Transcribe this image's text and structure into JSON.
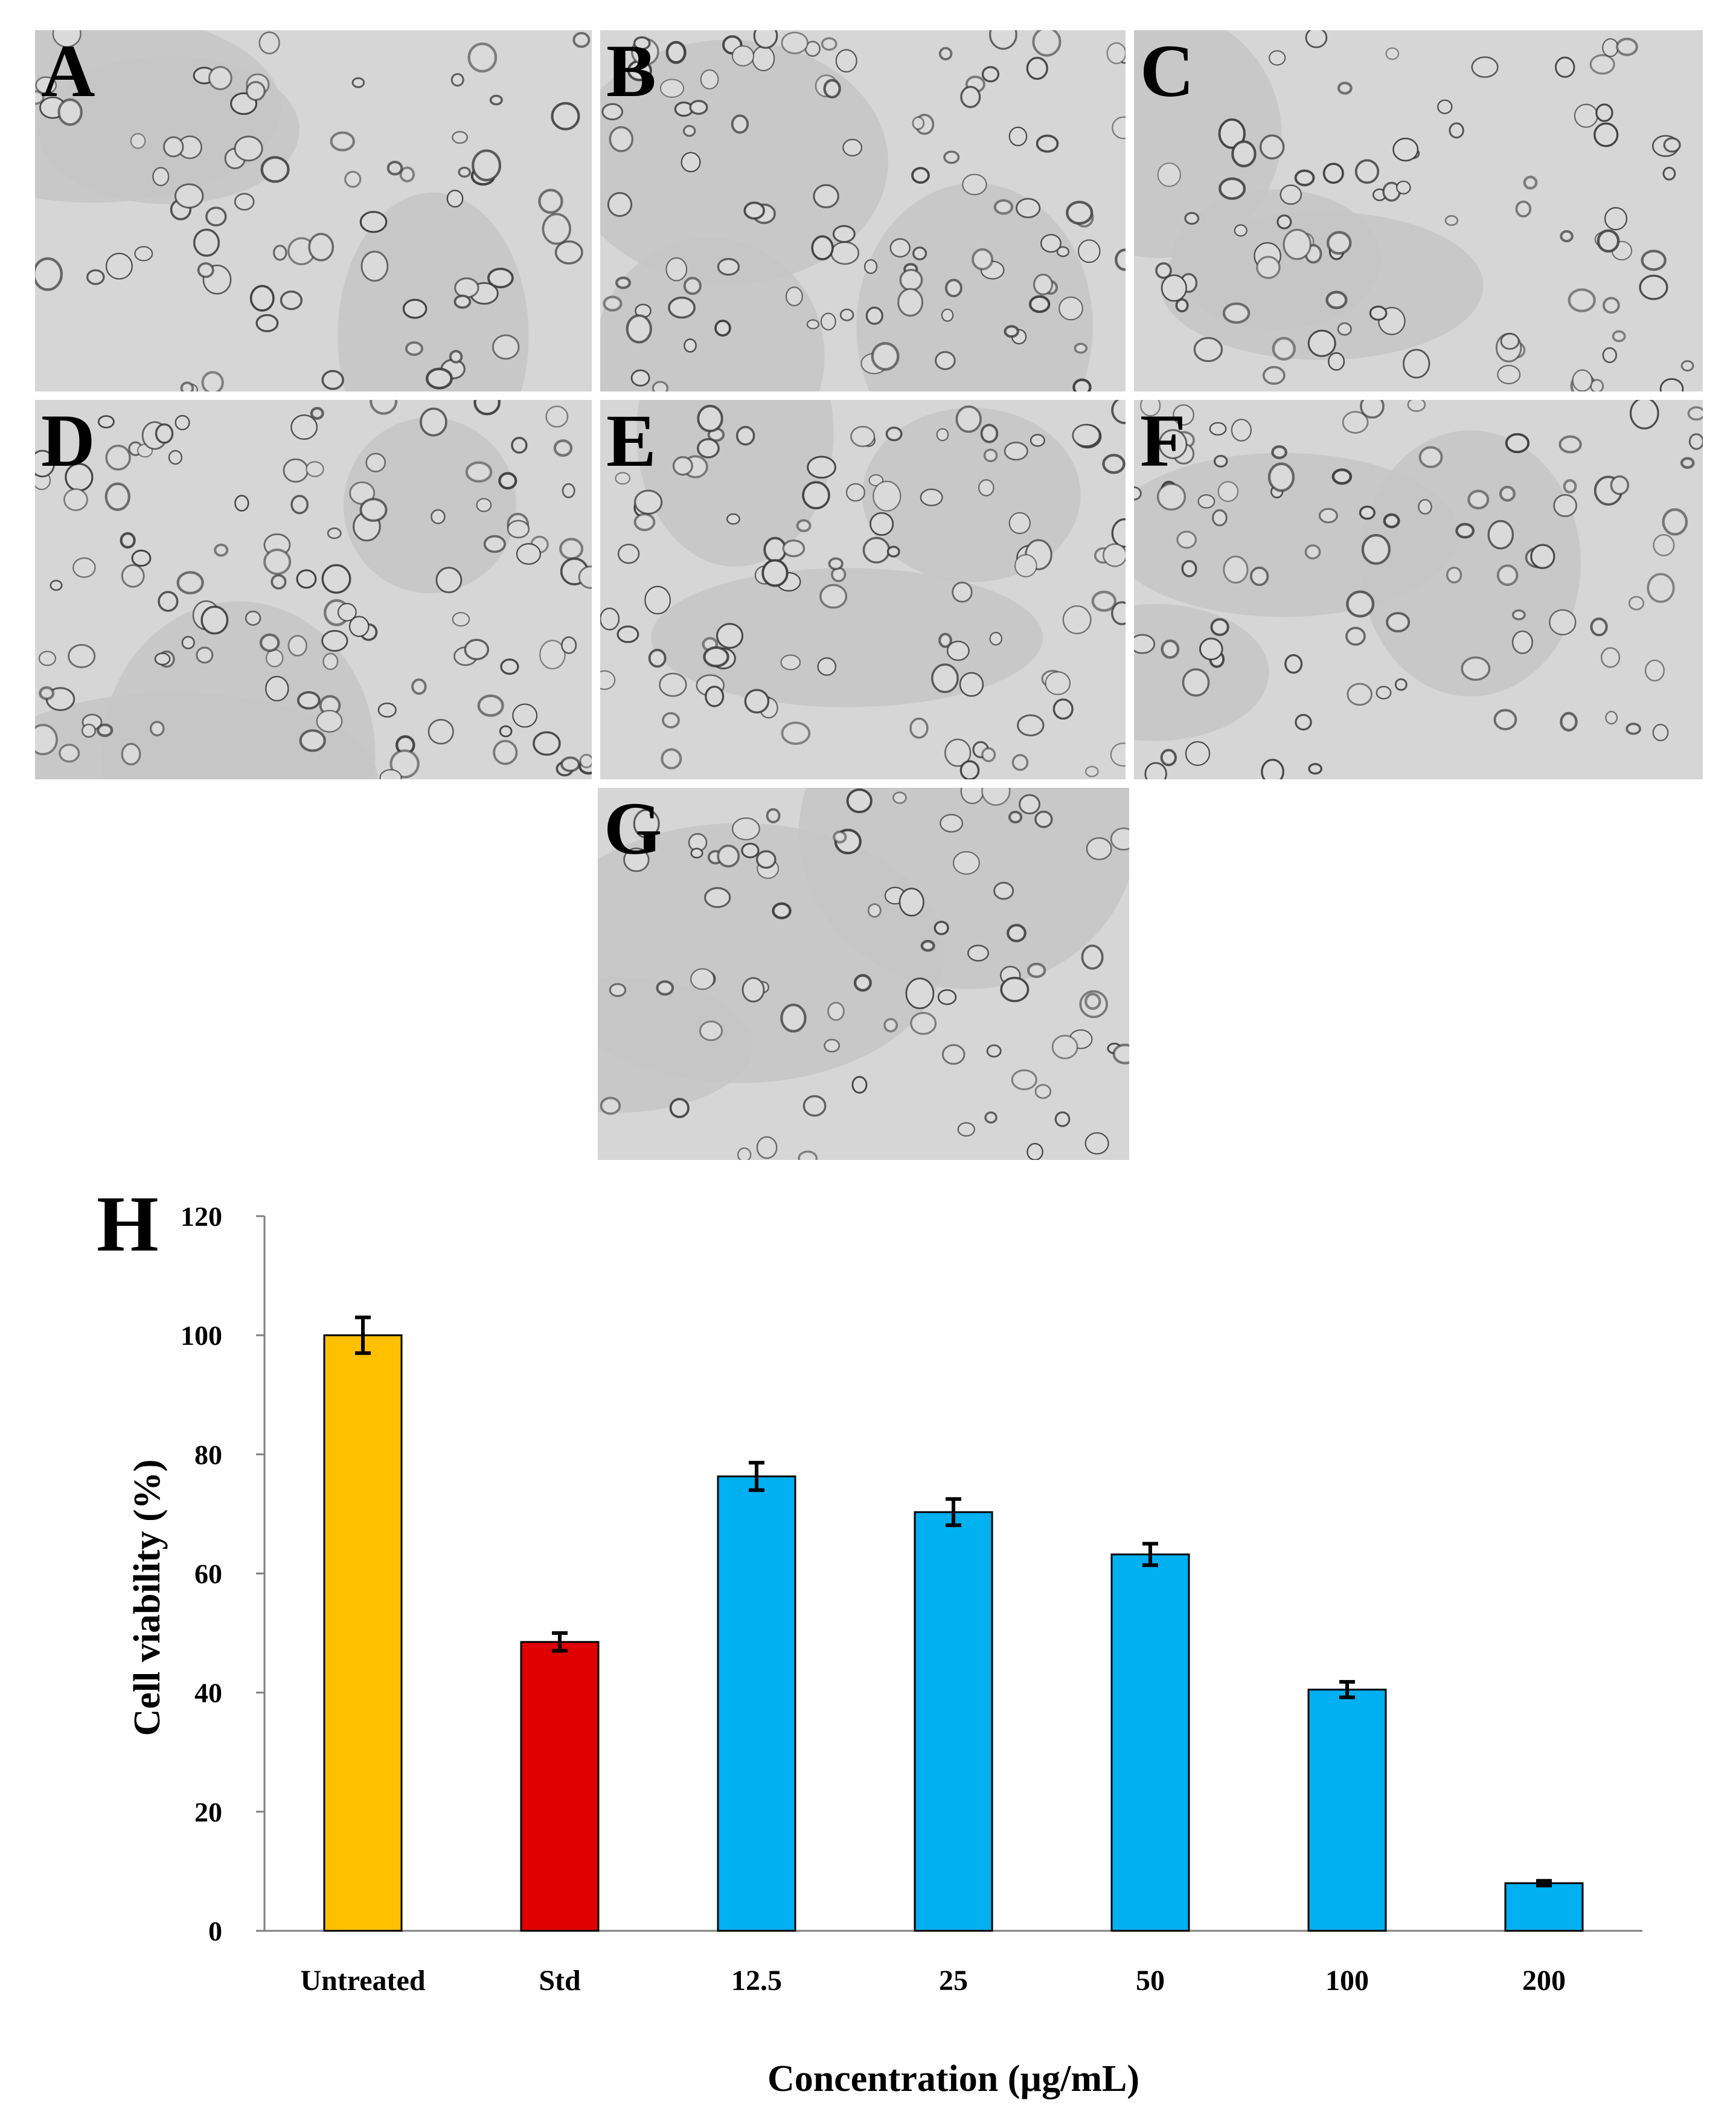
{
  "panels": [
    {
      "label": "A",
      "density": 70,
      "seed": 11
    },
    {
      "label": "B",
      "density": 95,
      "seed": 23
    },
    {
      "label": "C",
      "density": 80,
      "seed": 37
    },
    {
      "label": "D",
      "density": 110,
      "seed": 41
    },
    {
      "label": "E",
      "density": 95,
      "seed": 53
    },
    {
      "label": "F",
      "density": 85,
      "seed": 67
    },
    {
      "label": "G",
      "density": 75,
      "seed": 79
    }
  ],
  "chart_letter": "H",
  "chart_data": {
    "type": "bar",
    "categories": [
      "Untreated",
      "Std",
      "12.5",
      "25",
      "50",
      "100",
      "200"
    ],
    "values": [
      100,
      48.5,
      76.3,
      70.3,
      63.2,
      40.5,
      8
    ],
    "errors": [
      3,
      1.5,
      2.3,
      2.2,
      1.8,
      1.3,
      0.4
    ],
    "colors": [
      "#FFC000",
      "#E00000",
      "#00B0F0",
      "#00B0F0",
      "#00B0F0",
      "#00B0F0",
      "#00B0F0"
    ],
    "xlabel": "Concentration (µg/mL)",
    "ylabel": "Cell viability (%)",
    "ylim": [
      0,
      120
    ],
    "yticks": [
      0,
      20,
      40,
      60,
      80,
      100,
      120
    ],
    "grid": false
  }
}
